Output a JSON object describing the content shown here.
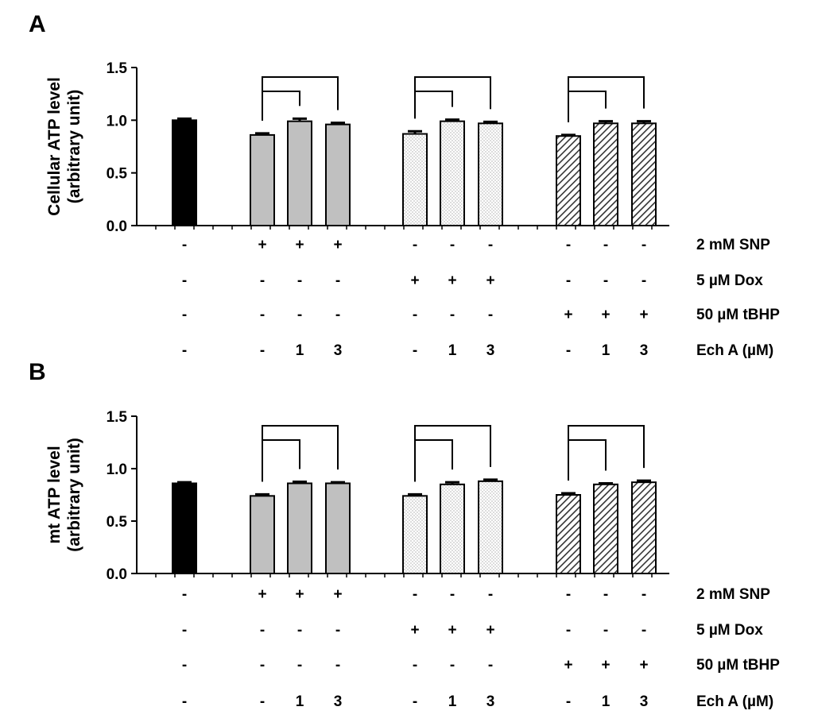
{
  "conditions": {
    "row_labels": [
      "2 mM SNP",
      "5 µM Dox",
      "50 µM tBHP",
      "Ech A (µM)"
    ],
    "rows": [
      [
        "-",
        "+",
        "+",
        "+",
        "-",
        "-",
        "-",
        "-",
        "-",
        "-"
      ],
      [
        "-",
        "-",
        "-",
        "-",
        "+",
        "+",
        "+",
        "-",
        "-",
        "-"
      ],
      [
        "-",
        "-",
        "-",
        "-",
        "-",
        "-",
        "-",
        "+",
        "+",
        "+"
      ],
      [
        "-",
        "-",
        "1",
        "3",
        "-",
        "1",
        "3",
        "-",
        "1",
        "3"
      ]
    ]
  },
  "colors": {
    "control": "#000000",
    "snp": "#c0c0c0",
    "dox": "#f2f2f2",
    "tbhp": "#e6e6e6",
    "stroke": "#000000"
  },
  "chart_data": [
    {
      "type": "bar",
      "panel_label": "A",
      "ylabel": [
        "Cellular ATP level",
        "(arbitrary unit)"
      ],
      "ylim": [
        0,
        1.5
      ],
      "yticks": [
        "0.0",
        "0.5",
        "1.0",
        "1.5"
      ],
      "categories": [
        "Control",
        "SNP",
        "SNP + Ech A 1 µM",
        "SNP + Ech A 3 µM",
        "Dox",
        "Dox + Ech A 1 µM",
        "Dox + Ech A 3 µM",
        "tBHP",
        "tBHP + Ech A 1 µM",
        "tBHP + Ech A 3 µM"
      ],
      "values": [
        1.0,
        0.86,
        0.99,
        0.96,
        0.87,
        0.99,
        0.97,
        0.85,
        0.97,
        0.97
      ],
      "errors": [
        0.015,
        0.015,
        0.025,
        0.015,
        0.025,
        0.015,
        0.015,
        0.01,
        0.02,
        0.02
      ],
      "fills": [
        "control",
        "snp",
        "snp",
        "snp",
        "dox",
        "dox",
        "dox",
        "tbhp",
        "tbhp",
        "tbhp"
      ],
      "comparisons": [
        [
          1,
          2
        ],
        [
          1,
          3
        ],
        [
          4,
          5
        ],
        [
          4,
          6
        ],
        [
          7,
          8
        ],
        [
          7,
          9
        ]
      ]
    },
    {
      "type": "bar",
      "panel_label": "B",
      "ylabel": [
        "mt ATP level",
        "(arbitrary unit)"
      ],
      "ylim": [
        0,
        1.5
      ],
      "yticks": [
        "0.0",
        "0.5",
        "1.0",
        "1.5"
      ],
      "categories": [
        "Control",
        "SNP",
        "SNP + Ech A 1 µM",
        "SNP + Ech A 3 µM",
        "Dox",
        "Dox + Ech A 1 µM",
        "Dox + Ech A 3 µM",
        "tBHP",
        "tBHP + Ech A 1 µM",
        "tBHP + Ech A 3 µM"
      ],
      "values": [
        0.86,
        0.74,
        0.86,
        0.86,
        0.74,
        0.85,
        0.88,
        0.75,
        0.85,
        0.87
      ],
      "errors": [
        0.01,
        0.015,
        0.015,
        0.01,
        0.015,
        0.02,
        0.015,
        0.015,
        0.01,
        0.015
      ],
      "fills": [
        "control",
        "snp",
        "snp",
        "snp",
        "dox",
        "dox",
        "dox",
        "tbhp",
        "tbhp",
        "tbhp"
      ],
      "comparisons": [
        [
          1,
          2
        ],
        [
          1,
          3
        ],
        [
          4,
          5
        ],
        [
          4,
          6
        ],
        [
          7,
          8
        ],
        [
          7,
          9
        ]
      ]
    }
  ]
}
